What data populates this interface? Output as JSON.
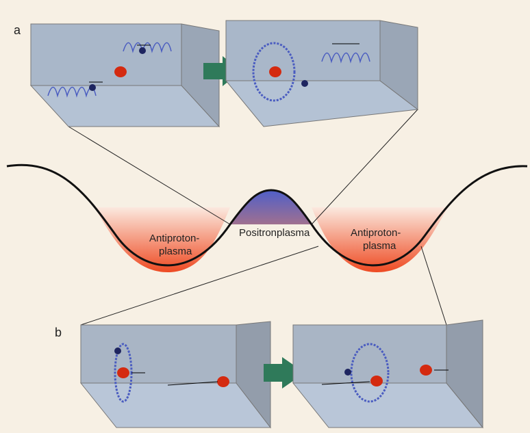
{
  "panels": [
    {
      "label": "a"
    },
    {
      "label": "b"
    }
  ],
  "regions": [
    {
      "lines": [
        "Antiproton-",
        "plasma"
      ]
    },
    {
      "label": "Positronplasma"
    },
    {
      "lines": [
        "Antiproton-",
        "plasma"
      ]
    }
  ]
}
